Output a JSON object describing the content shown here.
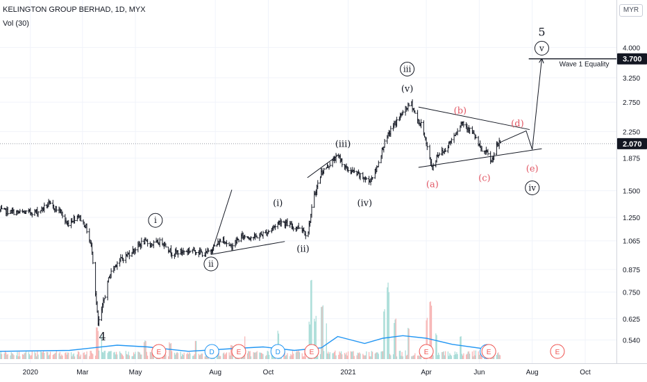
{
  "header": {
    "symbol_line": "KELINGTON GROUP BERHAD, 1D, MYX",
    "volume_line": "Vol (30)",
    "currency_button": "MYR"
  },
  "colors": {
    "candle_up": "#26a69a",
    "candle_down": "#ef5350",
    "bar_ink": "#131722",
    "volume_up": "#a5dbd6",
    "volume_down": "#f7b3b2",
    "volume_ma": "#2196f3",
    "wave_label": "#131722",
    "corrective_label": "#e25764",
    "earnings_badge": "#ef5350",
    "dividend_badge": "#2196f3",
    "price_tag_bg": "#131722",
    "axis_text": "#131722",
    "grid": "#f0f3fa"
  },
  "chart_data": {
    "type": "ohlc",
    "symbol": "KELINGTON GROUP BERHAD",
    "interval": "1D",
    "exchange": "MYX",
    "currency": "MYR",
    "y_scale": "log",
    "y_ticks": [
      "4.000",
      "3.250",
      "2.750",
      "2.250",
      "1.875",
      "1.500",
      "1.250",
      "1.065",
      "0.875",
      "0.750",
      "0.625",
      "0.540"
    ],
    "x_ticks": [
      "2020",
      "Mar",
      "May",
      "Aug",
      "Oct",
      "2021",
      "Apr",
      "Jun",
      "Aug",
      "Oct"
    ],
    "x_tick_dates": [
      "2020-01-01",
      "2020-03-01",
      "2020-05-01",
      "2020-08-01",
      "2020-10-01",
      "2021-01-01",
      "2021-04-01",
      "2021-06-01",
      "2021-08-01",
      "2021-10-01"
    ],
    "x_range": [
      "2019-11-27",
      "2021-11-06"
    ],
    "last_price": "2.070",
    "target_price": "3.700",
    "price_path": [
      [
        "2019-11-27",
        1.31
      ],
      [
        "2019-12-20",
        1.29
      ],
      [
        "2020-01-10",
        1.3
      ],
      [
        "2020-01-22",
        1.37
      ],
      [
        "2020-02-05",
        1.3
      ],
      [
        "2020-02-12",
        1.19
      ],
      [
        "2020-02-25",
        1.27
      ],
      [
        "2020-03-05",
        1.17
      ],
      [
        "2020-03-12",
        1.0
      ],
      [
        "2020-03-19",
        0.6
      ],
      [
        "2020-03-23",
        0.66
      ],
      [
        "2020-04-01",
        0.84
      ],
      [
        "2020-04-10",
        0.92
      ],
      [
        "2020-04-20",
        0.96
      ],
      [
        "2020-05-01",
        1.01
      ],
      [
        "2020-05-10",
        1.06
      ],
      [
        "2020-05-20",
        1.04
      ],
      [
        "2020-06-01",
        1.06
      ],
      [
        "2020-06-12",
        0.98
      ],
      [
        "2020-06-25",
        0.99
      ],
      [
        "2020-07-08",
        1.0
      ],
      [
        "2020-07-20",
        0.97
      ],
      [
        "2020-08-01",
        1.03
      ],
      [
        "2020-08-10",
        1.08
      ],
      [
        "2020-08-18",
        1.02
      ],
      [
        "2020-09-01",
        1.1
      ],
      [
        "2020-09-15",
        1.09
      ],
      [
        "2020-09-30",
        1.13
      ],
      [
        "2020-10-15",
        1.22
      ],
      [
        "2020-10-30",
        1.17
      ],
      [
        "2020-11-08",
        1.17
      ],
      [
        "2020-11-15",
        1.1
      ],
      [
        "2020-11-22",
        1.42
      ],
      [
        "2020-12-01",
        1.7
      ],
      [
        "2020-12-10",
        1.79
      ],
      [
        "2020-12-20",
        1.91
      ],
      [
        "2020-12-30",
        1.74
      ],
      [
        "2021-01-08",
        1.7
      ],
      [
        "2021-01-20",
        1.63
      ],
      [
        "2021-01-25",
        1.6
      ],
      [
        "2021-02-02",
        1.72
      ],
      [
        "2021-02-10",
        2.02
      ],
      [
        "2021-02-20",
        2.3
      ],
      [
        "2021-03-01",
        2.48
      ],
      [
        "2021-03-10",
        2.66
      ],
      [
        "2021-03-15",
        2.72
      ],
      [
        "2021-03-22",
        2.42
      ],
      [
        "2021-03-28",
        2.32
      ],
      [
        "2021-04-04",
        1.9
      ],
      [
        "2021-04-08",
        1.75
      ],
      [
        "2021-04-14",
        1.93
      ],
      [
        "2021-04-22",
        1.97
      ],
      [
        "2021-05-01",
        2.15
      ],
      [
        "2021-05-12",
        2.4
      ],
      [
        "2021-05-20",
        2.3
      ],
      [
        "2021-05-27",
        2.17
      ],
      [
        "2021-06-03",
        1.98
      ],
      [
        "2021-06-10",
        1.94
      ],
      [
        "2021-06-15",
        1.82
      ],
      [
        "2021-06-20",
        2.01
      ],
      [
        "2021-06-25",
        2.09
      ]
    ],
    "volume": {
      "ma_period": 30,
      "bursts": [
        [
          "2020-03-18",
          0.38
        ],
        [
          "2020-03-22",
          0.29
        ],
        [
          "2020-05-12",
          0.22
        ],
        [
          "2020-06-10",
          0.2
        ],
        [
          "2020-07-10",
          0.21
        ],
        [
          "2020-08-20",
          0.17
        ],
        [
          "2020-09-05",
          0.29
        ],
        [
          "2020-10-12",
          0.33
        ],
        [
          "2020-11-18",
          0.44
        ],
        [
          "2020-11-20",
          0.95
        ],
        [
          "2020-11-24",
          0.5
        ],
        [
          "2020-12-02",
          0.7
        ],
        [
          "2020-12-06",
          0.45
        ],
        [
          "2021-02-12",
          0.6
        ],
        [
          "2021-02-16",
          0.9
        ],
        [
          "2021-02-24",
          0.48
        ],
        [
          "2021-03-12",
          0.38
        ],
        [
          "2021-04-02",
          0.5
        ],
        [
          "2021-04-06",
          0.72
        ],
        [
          "2021-04-12",
          0.3
        ],
        [
          "2021-05-10",
          0.28
        ],
        [
          "2021-06-14",
          0.15
        ]
      ],
      "ma": [
        [
          "2019-11-27",
          0.09
        ],
        [
          "2020-02-15",
          0.1
        ],
        [
          "2020-04-10",
          0.16
        ],
        [
          "2020-05-15",
          0.14
        ],
        [
          "2020-07-01",
          0.09
        ],
        [
          "2020-08-20",
          0.12
        ],
        [
          "2020-09-25",
          0.14
        ],
        [
          "2020-10-31",
          0.1
        ],
        [
          "2020-12-01",
          0.13
        ],
        [
          "2020-12-20",
          0.26
        ],
        [
          "2021-01-20",
          0.18
        ],
        [
          "2021-02-10",
          0.24
        ],
        [
          "2021-03-05",
          0.27
        ],
        [
          "2021-04-01",
          0.24
        ],
        [
          "2021-05-01",
          0.17
        ],
        [
          "2021-06-20",
          0.1
        ]
      ]
    },
    "wave_labels": [
      {
        "text": "4",
        "date": "2020-03-24",
        "price": 0.553,
        "style": "plain",
        "size": "large"
      },
      {
        "text": "i",
        "date": "2020-05-24",
        "price": 1.225,
        "style": "circled"
      },
      {
        "text": "ii",
        "date": "2020-07-27",
        "price": 0.909,
        "style": "circled"
      },
      {
        "text": "(i)",
        "date": "2020-10-12",
        "price": 1.38,
        "style": "plain"
      },
      {
        "text": "(ii)",
        "date": "2020-11-10",
        "price": 1.01,
        "style": "plain"
      },
      {
        "text": "(iii)",
        "date": "2020-12-26",
        "price": 2.07,
        "style": "plain"
      },
      {
        "text": "(iv)",
        "date": "2021-01-20",
        "price": 1.38,
        "style": "plain"
      },
      {
        "text": "iii",
        "date": "2021-03-10",
        "price": 3.45,
        "style": "circled"
      },
      {
        "text": "(v)",
        "date": "2021-03-10",
        "price": 3.02,
        "style": "plain"
      },
      {
        "text": "(a)",
        "date": "2021-04-08",
        "price": 1.57,
        "style": "plain",
        "role": "corrective"
      },
      {
        "text": "(b)",
        "date": "2021-05-10",
        "price": 2.6,
        "style": "plain",
        "role": "corrective"
      },
      {
        "text": "(c)",
        "date": "2021-06-07",
        "price": 1.64,
        "style": "plain",
        "role": "corrective"
      },
      {
        "text": "(d)",
        "date": "2021-07-15",
        "price": 2.38,
        "style": "plain",
        "role": "corrective"
      },
      {
        "text": "(e)",
        "date": "2021-08-01",
        "price": 1.75,
        "style": "plain",
        "role": "corrective"
      },
      {
        "text": "iv",
        "date": "2021-08-01",
        "price": 1.53,
        "style": "circled"
      },
      {
        "text": "5",
        "date": "2021-08-12",
        "price": 4.45,
        "style": "plain",
        "size": "large"
      },
      {
        "text": "v",
        "date": "2021-08-12",
        "price": 3.98,
        "style": "circled"
      }
    ],
    "annotations": [
      {
        "kind": "trendline",
        "from": [
          "2021-03-23",
          2.66
        ],
        "to": [
          "2021-07-29",
          2.28
        ]
      },
      {
        "kind": "trendline",
        "from": [
          "2021-03-23",
          1.76
        ],
        "to": [
          "2021-08-12",
          2.0
        ]
      },
      {
        "kind": "projection",
        "points": [
          [
            "2021-06-25",
            2.09
          ],
          [
            "2021-07-25",
            2.26
          ],
          [
            "2021-08-01",
            1.99
          ],
          [
            "2021-08-12",
            3.7
          ]
        ],
        "arrow": true
      },
      {
        "kind": "wedge",
        "apex": [
          "2020-08-20",
          1.51
        ],
        "lower": [
          "2020-10-20",
          1.06
        ],
        "origin": [
          "2020-07-27",
          0.97
        ]
      },
      {
        "kind": "channel",
        "from": [
          "2020-11-15",
          1.64
        ],
        "to": [
          "2020-12-20",
          1.91
        ]
      },
      {
        "kind": "horizontal",
        "price": 3.7,
        "from_date": "2021-07-28",
        "text": "Wave 1 Equality"
      }
    ],
    "events": [
      {
        "type": "E",
        "date": "2020-05-28"
      },
      {
        "type": "D",
        "date": "2020-07-28"
      },
      {
        "type": "E",
        "date": "2020-08-28"
      },
      {
        "type": "D",
        "date": "2020-10-12"
      },
      {
        "type": "E",
        "date": "2020-11-20"
      },
      {
        "type": "E",
        "date": "2021-04-01"
      },
      {
        "type": "D",
        "date": "2021-06-10"
      },
      {
        "type": "E",
        "date": "2021-06-12"
      },
      {
        "type": "E",
        "date": "2021-08-30"
      }
    ]
  }
}
